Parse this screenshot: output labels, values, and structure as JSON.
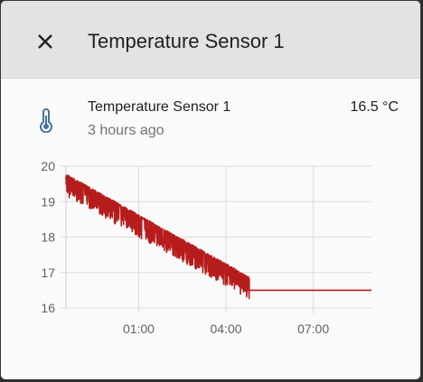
{
  "dialog": {
    "title": "Temperature Sensor 1",
    "close_icon": "close-icon"
  },
  "entity": {
    "icon": "thermometer-icon",
    "icon_color": "#44739e",
    "name": "Temperature Sensor 1",
    "last_changed": "3 hours ago",
    "state": "16.5 °C"
  },
  "chart_data": {
    "type": "line",
    "x_ticks": [
      "01:00",
      "04:00",
      "07:00"
    ],
    "y_ticks": [
      20,
      19,
      18,
      17,
      16
    ],
    "ylim": [
      16,
      20
    ],
    "xlim_hours": [
      -1.5,
      9
    ],
    "grid": true,
    "series": [
      {
        "color": "#b71c1c",
        "x_hours": [
          -1.5,
          4.8,
          4.8,
          9
        ],
        "values": [
          19.7,
          16.8,
          16.5,
          16.5
        ],
        "noise_band": 0.55
      }
    ]
  }
}
